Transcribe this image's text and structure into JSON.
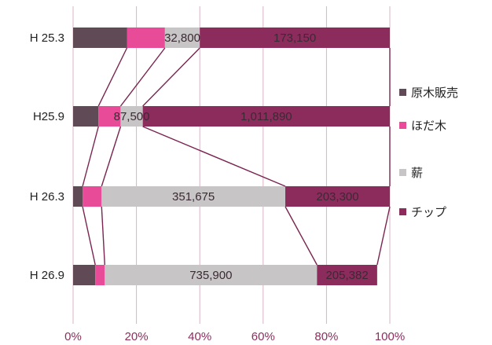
{
  "chart_data": {
    "type": "bar",
    "orientation": "horizontal",
    "stacked": "percent",
    "categories": [
      "H 25.3",
      "H25.9",
      "H 26.3",
      "H 26.9"
    ],
    "series": [
      {
        "name": "原木販売",
        "color": "#5f4a55",
        "values_pct": [
          17,
          8,
          3,
          7
        ]
      },
      {
        "name": "ほだ木",
        "color": "#e84c98",
        "values_pct": [
          12,
          7,
          6,
          3
        ]
      },
      {
        "name": "薪",
        "color": "#c8c5c6",
        "values_pct": [
          11,
          7,
          58,
          67
        ]
      },
      {
        "name": "チップ",
        "color": "#8c2c5d",
        "values_pct": [
          60,
          78,
          33,
          19
        ]
      }
    ],
    "segment_labels": [
      {
        "category": "H 25.3",
        "series": "薪",
        "text": "32,800"
      },
      {
        "category": "H 25.3",
        "series": "チップ",
        "text": "173,150"
      },
      {
        "category": "H25.9",
        "series": "薪",
        "text": "87,500"
      },
      {
        "category": "H25.9",
        "series": "チップ",
        "text": "1,011,890"
      },
      {
        "category": "H 26.3",
        "series": "薪",
        "text": "351,675"
      },
      {
        "category": "H 26.3",
        "series": "チップ",
        "text": "203,300"
      },
      {
        "category": "H 26.9",
        "series": "薪",
        "text": "735,900"
      },
      {
        "category": "H 26.9",
        "series": "チップ",
        "text": "205,382"
      }
    ],
    "x_ticks": [
      "0%",
      "20%",
      "40%",
      "60%",
      "80%",
      "100%"
    ],
    "xlim": [
      0,
      100
    ],
    "series_lines": true,
    "grid": true,
    "legend": "right"
  }
}
